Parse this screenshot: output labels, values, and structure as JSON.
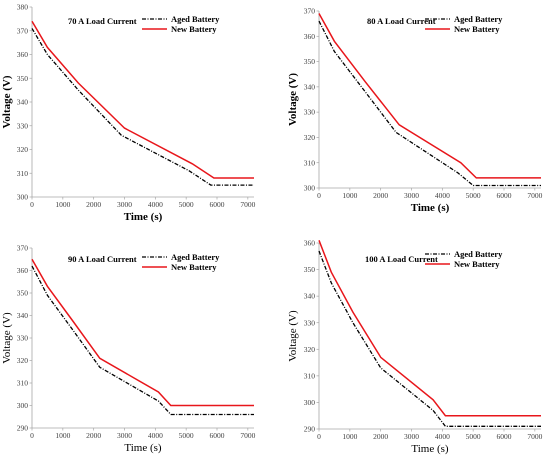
{
  "colors": {
    "aged": "#000000",
    "new": "#e8161b",
    "axis": "#a6a6a6"
  },
  "chart_data": [
    {
      "type": "line",
      "title": "70 A Load Current",
      "xlabel": "Time (s)",
      "ylabel": "Voltage (V)",
      "xlim": [
        0,
        7200
      ],
      "ylim": [
        300,
        380
      ],
      "xticks": [
        0,
        1000,
        2000,
        3000,
        4000,
        5000,
        6000,
        7000
      ],
      "yticks": [
        300,
        310,
        320,
        330,
        340,
        350,
        360,
        370,
        380
      ],
      "legend": "top-right",
      "series": [
        {
          "name": "Aged Battery",
          "style": "dash-dot",
          "x": [
            0,
            500,
            1500,
            2900,
            5100,
            5800,
            7200
          ],
          "y": [
            371,
            360,
            345,
            326,
            311,
            305,
            305
          ]
        },
        {
          "name": "New Battery",
          "style": "solid",
          "x": [
            0,
            500,
            1500,
            3000,
            5200,
            5900,
            7200
          ],
          "y": [
            374,
            363,
            348,
            329,
            314,
            308,
            308
          ]
        }
      ]
    },
    {
      "type": "line",
      "title": "80 A Load Current",
      "xlabel": "Time (s)",
      "ylabel": "Voltage (V)",
      "xlim": [
        0,
        7200
      ],
      "ylim": [
        300,
        370
      ],
      "xticks": [
        0,
        1000,
        2000,
        3000,
        4000,
        5000,
        6000,
        7000
      ],
      "yticks": [
        300,
        310,
        320,
        330,
        340,
        350,
        360,
        370
      ],
      "legend": "top-right",
      "series": [
        {
          "name": "Aged Battery",
          "style": "dash-dot",
          "x": [
            0,
            500,
            1500,
            2500,
            4500,
            5000,
            7200
          ],
          "y": [
            366,
            354,
            338,
            322,
            306,
            301,
            301
          ]
        },
        {
          "name": "New Battery",
          "style": "solid",
          "x": [
            0,
            500,
            1500,
            2600,
            4600,
            5100,
            7200
          ],
          "y": [
            369,
            358,
            342,
            325,
            310,
            304,
            304
          ]
        }
      ]
    },
    {
      "type": "line",
      "title": "90 A Load Current",
      "xlabel": "Time (s)",
      "ylabel": "Voltage (V)",
      "xlim": [
        0,
        7200
      ],
      "ylim": [
        290,
        370
      ],
      "xticks": [
        0,
        1000,
        2000,
        3000,
        4000,
        5000,
        6000,
        7000
      ],
      "yticks": [
        290,
        300,
        310,
        320,
        330,
        340,
        350,
        360,
        370
      ],
      "legend": "top-right",
      "series": [
        {
          "name": "Aged Battery",
          "style": "dash-dot",
          "x": [
            0,
            500,
            1300,
            2200,
            4100,
            4500,
            7200
          ],
          "y": [
            362,
            349,
            334,
            317,
            302,
            296,
            296
          ]
        },
        {
          "name": "New Battery",
          "style": "solid",
          "x": [
            0,
            500,
            1300,
            2200,
            4100,
            4500,
            7200
          ],
          "y": [
            365,
            353,
            338,
            321,
            306,
            300,
            300
          ]
        }
      ]
    },
    {
      "type": "line",
      "title": "100 A Load Current",
      "xlabel": "Time (s)",
      "ylabel": "Voltage (V)",
      "xlim": [
        0,
        7200
      ],
      "ylim": [
        290,
        360
      ],
      "xticks": [
        0,
        1000,
        2000,
        3000,
        4000,
        5000,
        6000,
        7000
      ],
      "yticks": [
        290,
        300,
        310,
        320,
        330,
        340,
        350,
        360
      ],
      "legend": "top-right",
      "series": [
        {
          "name": "Aged Battery",
          "style": "dash-dot",
          "x": [
            0,
            400,
            1100,
            2000,
            3700,
            4100,
            7200
          ],
          "y": [
            357,
            345,
            330,
            313,
            297,
            291,
            291
          ]
        },
        {
          "name": "New Battery",
          "style": "solid",
          "x": [
            0,
            400,
            1100,
            2000,
            3700,
            4100,
            7200
          ],
          "y": [
            361,
            349,
            334,
            317,
            301,
            295,
            295
          ]
        }
      ]
    }
  ]
}
